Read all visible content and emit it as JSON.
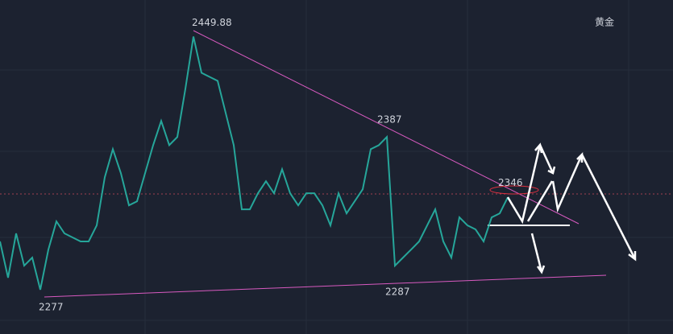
{
  "chart_data": {
    "type": "line",
    "title": "黄金",
    "x": [
      0,
      1,
      2,
      3,
      4,
      5,
      6,
      7,
      8,
      9,
      10,
      11,
      12,
      13,
      14,
      15,
      16,
      17,
      18,
      19,
      20,
      21,
      22,
      23,
      24,
      25,
      26,
      27,
      28,
      29,
      30,
      31,
      32,
      33,
      34,
      35,
      36,
      37,
      38,
      39,
      40,
      41,
      42,
      43,
      44,
      45,
      46,
      47,
      48,
      49,
      50,
      51,
      52,
      53,
      54,
      55,
      56,
      57,
      58,
      59,
      60,
      61,
      62,
      63
    ],
    "series": [
      {
        "color": "#26a69a",
        "values": [
          2313.5,
          2290.0,
          2318.7,
          2297.8,
          2303.0,
          2282.2,
          2308.2,
          2326.5,
          2318.7,
          2316.1,
          2313.5,
          2313.5,
          2323.9,
          2355.1,
          2373.3,
          2357.7,
          2336.9,
          2339.5,
          2357.7,
          2375.9,
          2391.6,
          2375.9,
          2381.2,
          2412.4,
          2446.3,
          2422.8,
          2420.2,
          2417.6,
          2396.8,
          2375.9,
          2334.3,
          2334.3,
          2344.7,
          2352.5,
          2344.7,
          2360.3,
          2344.7,
          2336.9,
          2344.7,
          2344.7,
          2336.9,
          2323.9,
          2344.7,
          2331.7,
          2339.5,
          2347.3,
          2373.3,
          2375.9,
          2381.2,
          2297.8,
          2303.0,
          2308.2,
          2313.5,
          2323.9,
          2334.3,
          2313.5,
          2303.0,
          2329.1,
          2323.9,
          2321.3,
          2313.5,
          2329.1,
          2331.7,
          2342.1
        ]
      }
    ],
    "xlim": [
      0,
      83.5
    ],
    "ylim": [
      2253.5,
      2470
    ],
    "annotations": [
      {
        "label": "2449.88",
        "value": 2449.88,
        "x": 24
      },
      {
        "label": "2387",
        "value": 2387,
        "x": 47
      },
      {
        "label": "2346",
        "value": 2346,
        "x": 62
      },
      {
        "label": "2287",
        "value": 2287,
        "x": 48
      },
      {
        "label": "2277",
        "value": 2277,
        "x": 5
      }
    ]
  }
}
